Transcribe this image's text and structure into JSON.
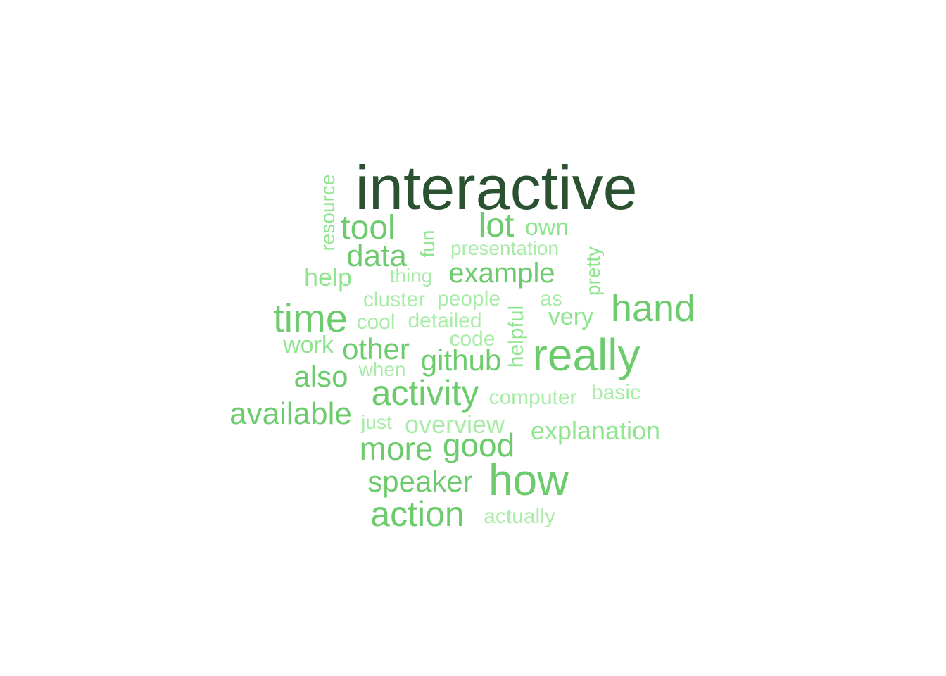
{
  "colors": {
    "dark": "#2a5230",
    "mid": "#6ccb6c",
    "light": "#8ee58e",
    "lighter": "#a8eca8"
  },
  "words": [
    {
      "text": "interactive",
      "color": "dark"
    },
    {
      "text": "resource",
      "color": "light"
    },
    {
      "text": "tool",
      "color": "mid"
    },
    {
      "text": "lot",
      "color": "mid"
    },
    {
      "text": "own",
      "color": "light"
    },
    {
      "text": "fun",
      "color": "light"
    },
    {
      "text": "data",
      "color": "mid"
    },
    {
      "text": "presentation",
      "color": "lighter"
    },
    {
      "text": "pretty",
      "color": "light"
    },
    {
      "text": "help",
      "color": "light"
    },
    {
      "text": "thing",
      "color": "lighter"
    },
    {
      "text": "example",
      "color": "mid"
    },
    {
      "text": "cluster",
      "color": "lighter"
    },
    {
      "text": "people",
      "color": "lighter"
    },
    {
      "text": "as",
      "color": "lighter"
    },
    {
      "text": "hand",
      "color": "mid"
    },
    {
      "text": "time",
      "color": "mid"
    },
    {
      "text": "cool",
      "color": "lighter"
    },
    {
      "text": "detailed",
      "color": "lighter"
    },
    {
      "text": "helpful",
      "color": "light"
    },
    {
      "text": "very",
      "color": "light"
    },
    {
      "text": "code",
      "color": "lighter"
    },
    {
      "text": "work",
      "color": "light"
    },
    {
      "text": "other",
      "color": "mid"
    },
    {
      "text": "github",
      "color": "mid"
    },
    {
      "text": "really",
      "color": "mid"
    },
    {
      "text": "when",
      "color": "lighter"
    },
    {
      "text": "also",
      "color": "mid"
    },
    {
      "text": "activity",
      "color": "mid"
    },
    {
      "text": "computer",
      "color": "lighter"
    },
    {
      "text": "basic",
      "color": "lighter"
    },
    {
      "text": "available",
      "color": "mid"
    },
    {
      "text": "just",
      "color": "lighter"
    },
    {
      "text": "overview",
      "color": "lighter"
    },
    {
      "text": "explanation",
      "color": "light"
    },
    {
      "text": "more",
      "color": "mid"
    },
    {
      "text": "good",
      "color": "mid"
    },
    {
      "text": "speaker",
      "color": "mid"
    },
    {
      "text": "how",
      "color": "mid"
    },
    {
      "text": "action",
      "color": "mid"
    },
    {
      "text": "actually",
      "color": "lighter"
    }
  ]
}
